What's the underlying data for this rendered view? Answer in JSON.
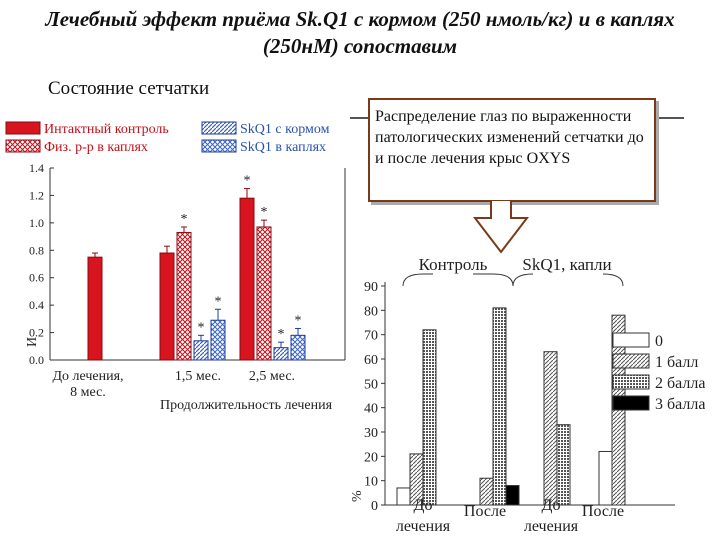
{
  "title": "Лечебный эффект приёма Sk.Q1 с кормом (250 нмоль/кг) и в каплях (250нМ) сопоставим",
  "subtitle": "Состояние сетчатки",
  "callout": "Распределение глаз по выраженности патологических изменений сетчатки до и после лечения крыс OXYS",
  "chart_data": [
    {
      "type": "bar",
      "legend": [
        "Интактный контроль",
        "Физ. р-р в каплях",
        "SkQ1 с кормом",
        "SkQ1 в каплях"
      ],
      "legend_colors": [
        "#d8141e",
        "#d8141e",
        "#3a64c8",
        "#3a64c8"
      ],
      "categories": [
        "До лечения, 8 мес.",
        "1,5 мес.",
        "2,5 мес."
      ],
      "xlabel": "Продолжительность лечения",
      "ylabel": "И",
      "ylim": [
        0,
        1.4
      ],
      "yticks": [
        "0.0",
        "0.2",
        "0.4",
        "0.6",
        "0.8",
        "1.0",
        "1.2",
        "1.4"
      ],
      "bars": [
        {
          "category": "До лечения, 8 мес.",
          "series": "Интактный контроль",
          "value": 0.75,
          "error": 0.03,
          "star": false
        },
        {
          "category": "До лечения, 8 мес.",
          "series": "Физ. р-р в каплях",
          "value": 0.0,
          "error": 0.0,
          "star": false
        },
        {
          "category": "До лечения, 8 мес.",
          "series": "SkQ1 с кормом",
          "value": 0.0,
          "error": 0.0,
          "star": false
        },
        {
          "category": "До лечения, 8 мес.",
          "series": "SkQ1 в каплях",
          "value": 0.0,
          "error": 0.0,
          "star": false
        },
        {
          "category": "1,5 мес.",
          "series": "Интактный контроль",
          "value": 0.78,
          "error": 0.05,
          "star": false
        },
        {
          "category": "1,5 мес.",
          "series": "Физ. р-р в каплях",
          "value": 0.93,
          "error": 0.04,
          "star": true
        },
        {
          "category": "1,5 мес.",
          "series": "SkQ1 с кормом",
          "value": 0.14,
          "error": 0.04,
          "star": true
        },
        {
          "category": "1,5 мес.",
          "series": "SkQ1 в каплях",
          "value": 0.29,
          "error": 0.08,
          "star": true
        },
        {
          "category": "2,5 мес.",
          "series": "Интактный контроль",
          "value": 1.18,
          "error": 0.07,
          "star": true
        },
        {
          "category": "2,5 мес.",
          "series": "Физ. р-р в каплях",
          "value": 0.97,
          "error": 0.05,
          "star": true
        },
        {
          "category": "2,5 мес.",
          "series": "SkQ1 с кормом",
          "value": 0.09,
          "error": 0.04,
          "star": true
        },
        {
          "category": "2,5 мес.",
          "series": "SkQ1 в каплях",
          "value": 0.18,
          "error": 0.05,
          "star": true
        }
      ]
    },
    {
      "type": "bar",
      "group_labels": [
        "Контроль",
        "SkQ1, капли"
      ],
      "categories": [
        "До лечения",
        "После",
        "До лечения",
        "После"
      ],
      "ylabel": "%",
      "ylim": [
        0,
        90
      ],
      "yticks": [
        "0",
        "10",
        "20",
        "30",
        "40",
        "50",
        "60",
        "70",
        "80",
        "90"
      ],
      "series": [
        {
          "name": "0",
          "values": [
            7,
            0,
            0,
            22
          ]
        },
        {
          "name": "1 балл",
          "values": [
            21,
            11,
            63,
            78
          ]
        },
        {
          "name": "2 балла",
          "values": [
            72,
            81,
            33,
            0
          ]
        },
        {
          "name": "3 балла",
          "values": [
            0,
            8,
            0,
            0
          ]
        }
      ]
    }
  ]
}
